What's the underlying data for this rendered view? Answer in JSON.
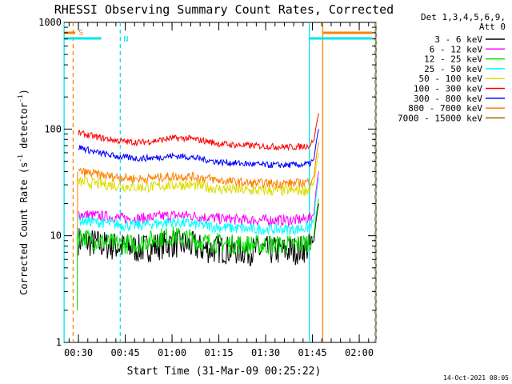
{
  "chart_data": {
    "type": "line",
    "title": "RHESSI Observing Summary Count Rates, Corrected",
    "xlabel": "Start Time (31-Mar-09 00:25:22)",
    "ylabel_main": "Corrected Count Rate (s",
    "ylabel_sup": "-1",
    "ylabel_mid": " detector",
    "ylabel_sup2": "-1",
    "ylabel_end": ")",
    "yscale": "log",
    "ylim": [
      1,
      1000
    ],
    "y_ticks": [
      {
        "v": 1,
        "label": "1"
      },
      {
        "v": 10,
        "label": "10"
      },
      {
        "v": 100,
        "label": "100"
      },
      {
        "v": 1000,
        "label": "1000"
      }
    ],
    "x_range_minutes": [
      25.37,
      125.37
    ],
    "x_ticks": [
      {
        "m": 30,
        "label": "00:30"
      },
      {
        "m": 45,
        "label": "00:45"
      },
      {
        "m": 60,
        "label": "01:00"
      },
      {
        "m": 75,
        "label": "01:15"
      },
      {
        "m": 90,
        "label": "01:30"
      },
      {
        "m": 105,
        "label": "01:45"
      },
      {
        "m": 120,
        "label": "02:00"
      }
    ],
    "grid": false,
    "legend": {
      "position": "right",
      "header1": "Det 1,3,4,5,6,9,",
      "header2": "Att 0"
    },
    "series": [
      {
        "name": "3 - 6 keV",
        "color": "#000000",
        "x": [
          30,
          35,
          40,
          45,
          50,
          55,
          60,
          65,
          70,
          75,
          80,
          85,
          90,
          95,
          100,
          104,
          105.5,
          107
        ],
        "y": [
          9,
          8.5,
          8,
          7.8,
          7.5,
          8,
          8.5,
          8.2,
          7.5,
          7.5,
          7.3,
          7.2,
          7.3,
          7.2,
          7.3,
          7.8,
          9,
          20
        ]
      },
      {
        "name": "6 - 12 keV",
        "color": "#ff00ff",
        "x": [
          30,
          35,
          40,
          45,
          50,
          55,
          60,
          65,
          70,
          75,
          80,
          85,
          90,
          95,
          100,
          104,
          105.5,
          107
        ],
        "y": [
          16,
          15.5,
          15,
          14.5,
          14.5,
          15,
          15.5,
          15.5,
          15,
          14.5,
          14.2,
          14,
          14,
          14,
          14,
          14.5,
          16,
          40
        ]
      },
      {
        "name": "12 - 25 keV",
        "color": "#00dd00",
        "x": [
          30,
          35,
          40,
          45,
          50,
          55,
          60,
          65,
          70,
          75,
          80,
          85,
          90,
          95,
          100,
          104,
          105.5,
          107
        ],
        "y": [
          10,
          9,
          8.5,
          8.3,
          8.5,
          9.5,
          10,
          9.5,
          8.7,
          8.5,
          8.3,
          8.2,
          8.2,
          8.2,
          8.3,
          8.7,
          10,
          22
        ]
      },
      {
        "name": "25 - 50 keV",
        "color": "#00ffff",
        "x": [
          30,
          35,
          40,
          45,
          50,
          55,
          60,
          65,
          70,
          75,
          80,
          85,
          90,
          95,
          100,
          104,
          105.5,
          107
        ],
        "y": [
          14,
          13.5,
          13,
          12.5,
          12.5,
          13,
          13.5,
          13,
          12.5,
          12,
          11.8,
          11.5,
          11.5,
          11.5,
          11.5,
          12,
          14,
          35
        ]
      },
      {
        "name": "50 - 100 keV",
        "color": "#dddd00",
        "x": [
          30,
          35,
          40,
          45,
          50,
          55,
          60,
          65,
          70,
          75,
          80,
          85,
          90,
          95,
          100,
          104,
          105.5,
          107
        ],
        "y": [
          32,
          31,
          30,
          29,
          28.5,
          29,
          30,
          30,
          29,
          27.5,
          27,
          26.5,
          26.5,
          26.5,
          26.5,
          27,
          31,
          60
        ]
      },
      {
        "name": "100 - 300 keV",
        "color": "#ff0000",
        "x": [
          30,
          35,
          40,
          45,
          50,
          55,
          60,
          65,
          70,
          75,
          80,
          85,
          90,
          95,
          100,
          104,
          105.5,
          107
        ],
        "y": [
          92,
          85,
          80,
          76,
          75,
          78,
          82,
          82,
          78,
          73,
          71,
          70,
          69,
          68,
          68,
          70,
          78,
          140
        ]
      },
      {
        "name": "300 - 800 keV",
        "color": "#0000ff",
        "x": [
          30,
          35,
          40,
          45,
          50,
          55,
          60,
          65,
          70,
          75,
          80,
          85,
          90,
          95,
          100,
          104,
          105.5,
          107
        ],
        "y": [
          68,
          61,
          57,
          54,
          53,
          54,
          56,
          55,
          52,
          49,
          48,
          47,
          46,
          46,
          46,
          47,
          52,
          100
        ]
      },
      {
        "name": "800 - 7000 keV",
        "color": "#ff8000",
        "x": [
          30,
          35,
          40,
          45,
          50,
          55,
          60,
          65,
          70,
          75,
          80,
          85,
          90,
          95,
          100,
          104,
          105.5,
          107
        ],
        "y": [
          40,
          38,
          36,
          35,
          34,
          35,
          36,
          36,
          35,
          33,
          32,
          31,
          31,
          31,
          31,
          32,
          36,
          75
        ]
      },
      {
        "name": "7000 - 15000 keV",
        "color": "#a06000",
        "x": [
          30,
          35,
          40,
          45,
          50,
          55,
          60,
          65,
          70,
          75,
          80,
          85,
          90,
          95,
          100,
          104,
          105.5,
          107
        ],
        "y": [
          null,
          null,
          null,
          null,
          null,
          null,
          null,
          null,
          null,
          null,
          null,
          null,
          null,
          null,
          null,
          null,
          null,
          null
        ]
      }
    ],
    "annotations": {
      "vlines_cyan": [
        25.4,
        43.4,
        104.0,
        125.0
      ],
      "vlines_orange": [
        28.3,
        108.3,
        125.3
      ],
      "cyan_band_label": "N",
      "orange_band_label": "S",
      "timestamp": "14-Oct-2021 08:05"
    }
  }
}
